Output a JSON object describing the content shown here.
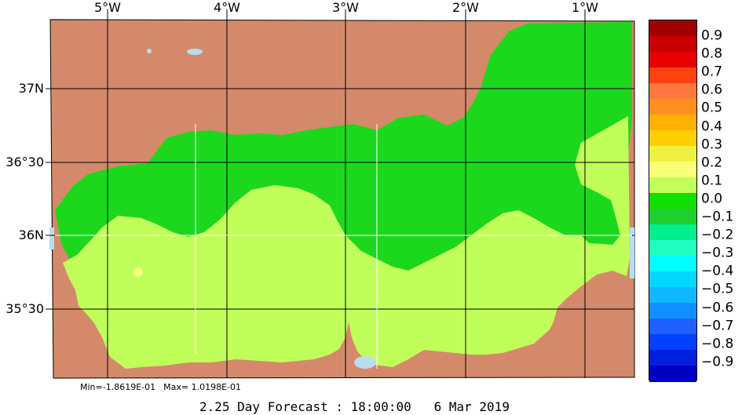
{
  "map": {
    "lon_labels": [
      "5°W",
      "4°W",
      "3°W",
      "2°W",
      "1°W"
    ],
    "lat_labels": [
      "37N",
      "36°30",
      "36N",
      "35°30"
    ],
    "colors": {
      "land": "#d4896a",
      "sea_green": "#1cd81c",
      "sea_lime": "#c0ff5a",
      "lake": "#b8dcf0",
      "spot": "#f4ff80",
      "grid_black": "#000000",
      "grid_white": "#ffffff"
    }
  },
  "colorbar": {
    "labels": [
      "0.9",
      "0.8",
      "0.7",
      "0.6",
      "0.5",
      "0.4",
      "0.3",
      "0.2",
      "0.1",
      "0.0",
      "−0.1",
      "−0.2",
      "−0.3",
      "−0.4",
      "−0.5",
      "−0.6",
      "−0.7",
      "−0.8",
      "−0.9"
    ],
    "colors": [
      "#a00000",
      "#c80000",
      "#e80000",
      "#ff4010",
      "#ff7840",
      "#ff9020",
      "#ffb000",
      "#ffd000",
      "#f0f040",
      "#f8ff78",
      "#c0ff5a",
      "#10e000",
      "#20d030",
      "#00f090",
      "#20ffc0",
      "#00ffff",
      "#00d8ff",
      "#10b8ff",
      "#1090ff",
      "#2060ff",
      "#0040ff",
      "#0020e0",
      "#0000c0"
    ]
  },
  "stats": {
    "min_text": "Min=-1.8619E-01",
    "max_text": "Max= 1.0198E-01"
  },
  "title": "2.25 Day Forecast : 18:00:00   6 Mar 2019"
}
